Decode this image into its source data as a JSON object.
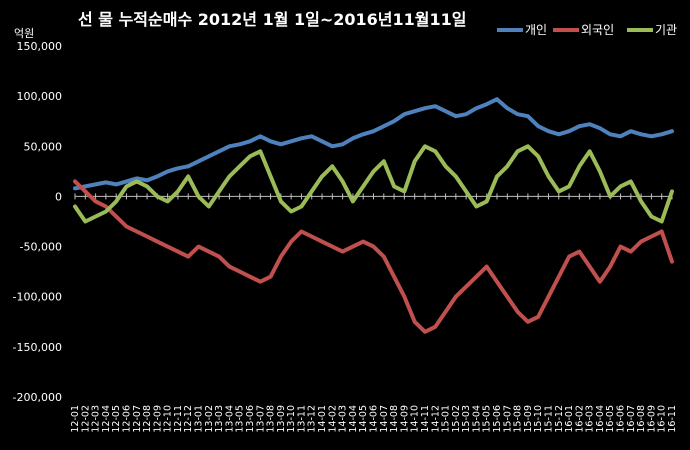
{
  "chart_data": {
    "type": "line",
    "title": "선 물 누적순매수 2012년 1월 1일~2016년11월11일",
    "unit_label": "억원",
    "ylim": [
      -200000,
      150000
    ],
    "yticks": [
      150000,
      100000,
      50000,
      0,
      -50000,
      -100000,
      -150000,
      -200000
    ],
    "ytick_labels": [
      "150,000",
      "100,000",
      "50,000",
      "0",
      "-50,000",
      "-100,000",
      "-150,000",
      "-200,000"
    ],
    "categories": [
      "12-01",
      "12-02",
      "12-03",
      "12-04",
      "12-05",
      "12-06",
      "12-07",
      "12-08",
      "12-09",
      "12-10",
      "12-11",
      "12-12",
      "13-01",
      "13-02",
      "13-03",
      "13-04",
      "13-05",
      "13-06",
      "13-07",
      "13-08",
      "13-09",
      "13-10",
      "13-11",
      "13-12",
      "14-01",
      "14-02",
      "14-03",
      "14-04",
      "14-05",
      "14-06",
      "14-07",
      "14-08",
      "14-09",
      "14-10",
      "14-11",
      "14-12",
      "15-01",
      "15-02",
      "15-03",
      "15-04",
      "15-05",
      "15-06",
      "15-07",
      "15-08",
      "15-09",
      "15-10",
      "15-11",
      "15-12",
      "16-01",
      "16-02",
      "16-03",
      "16-04",
      "16-05",
      "16-06",
      "16-07",
      "16-08",
      "16-09",
      "16-10",
      "16-11"
    ],
    "legend_position": "top-right",
    "grid": false,
    "series": [
      {
        "name": "개인",
        "color": "#4f81bd",
        "values": [
          8000,
          10000,
          12000,
          14000,
          12000,
          15000,
          18000,
          16000,
          20000,
          25000,
          28000,
          30000,
          35000,
          40000,
          45000,
          50000,
          52000,
          55000,
          60000,
          55000,
          52000,
          55000,
          58000,
          60000,
          55000,
          50000,
          52000,
          58000,
          62000,
          65000,
          70000,
          75000,
          82000,
          85000,
          88000,
          90000,
          85000,
          80000,
          82000,
          88000,
          92000,
          97000,
          88000,
          82000,
          80000,
          70000,
          65000,
          62000,
          65000,
          70000,
          72000,
          68000,
          62000,
          60000,
          65000,
          62000,
          60000,
          62000,
          65000
        ]
      },
      {
        "name": "외국인",
        "color": "#c0504d",
        "values": [
          15000,
          5000,
          -5000,
          -10000,
          -20000,
          -30000,
          -35000,
          -40000,
          -45000,
          -50000,
          -55000,
          -60000,
          -50000,
          -55000,
          -60000,
          -70000,
          -75000,
          -80000,
          -85000,
          -80000,
          -60000,
          -45000,
          -35000,
          -40000,
          -45000,
          -50000,
          -55000,
          -50000,
          -45000,
          -50000,
          -60000,
          -80000,
          -100000,
          -125000,
          -135000,
          -130000,
          -115000,
          -100000,
          -90000,
          -80000,
          -70000,
          -85000,
          -100000,
          -115000,
          -125000,
          -120000,
          -100000,
          -80000,
          -60000,
          -55000,
          -70000,
          -85000,
          -70000,
          -50000,
          -55000,
          -45000,
          -40000,
          -35000,
          -65000
        ]
      },
      {
        "name": "기관",
        "color": "#9bbb59",
        "values": [
          -10000,
          -25000,
          -20000,
          -15000,
          -5000,
          10000,
          15000,
          10000,
          0,
          -5000,
          5000,
          20000,
          0,
          -10000,
          5000,
          20000,
          30000,
          40000,
          45000,
          20000,
          -5000,
          -15000,
          -10000,
          5000,
          20000,
          30000,
          15000,
          -5000,
          10000,
          25000,
          35000,
          10000,
          5000,
          35000,
          50000,
          45000,
          30000,
          20000,
          5000,
          -10000,
          -5000,
          20000,
          30000,
          45000,
          50000,
          40000,
          20000,
          5000,
          10000,
          30000,
          45000,
          25000,
          0,
          10000,
          15000,
          -5000,
          -20000,
          -25000,
          5000
        ]
      }
    ]
  }
}
